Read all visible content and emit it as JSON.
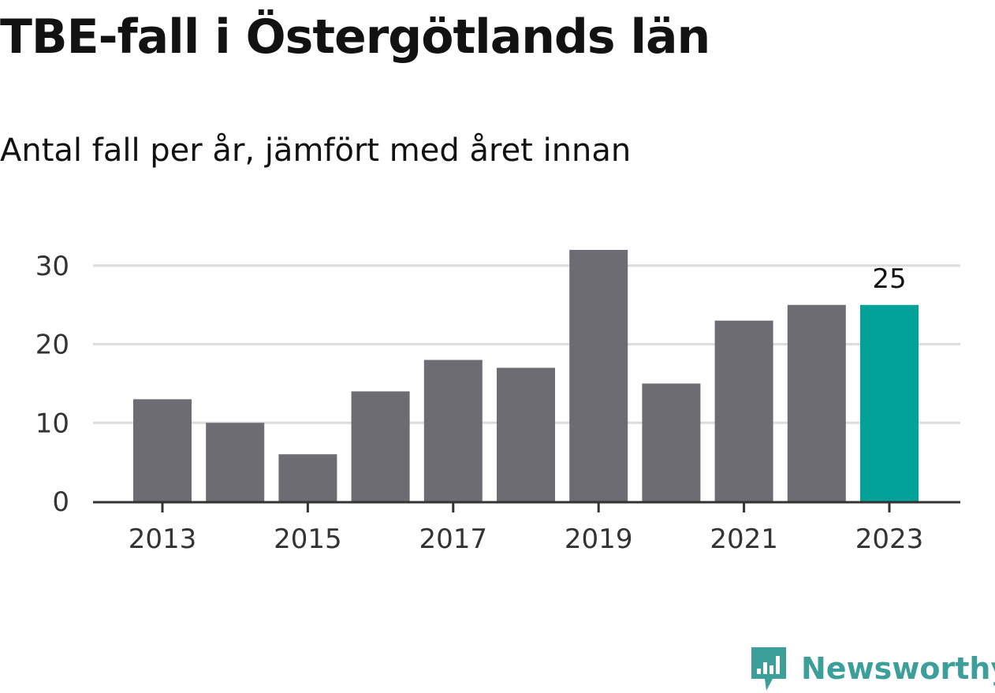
{
  "title": "TBE-fall i Östergötlands län",
  "subtitle": "Antal fall per år, jämfört med året innan",
  "brand": {
    "name": "Newsworthy",
    "icon": "newsworthy-logo-icon",
    "color": "#3d9f99"
  },
  "colors": {
    "bar": "#6d6c72",
    "highlight": "#00a29a",
    "grid": "#dcdcdc",
    "axis": "#333333",
    "text": "#333333"
  },
  "chart_data": {
    "type": "bar",
    "categories": [
      "2013",
      "2014",
      "2015",
      "2016",
      "2017",
      "2018",
      "2019",
      "2020",
      "2021",
      "2022",
      "2023"
    ],
    "values": [
      13,
      10,
      6,
      14,
      18,
      17,
      32,
      15,
      23,
      25,
      25
    ],
    "x_tick_labels": [
      "2013",
      "2015",
      "2017",
      "2019",
      "2021",
      "2023"
    ],
    "y_ticks": [
      0,
      10,
      20,
      30
    ],
    "ylim": [
      0,
      32
    ],
    "grid": true,
    "highlight_index": 10,
    "data_labels": [
      {
        "index": 10,
        "text": "25"
      }
    ],
    "xlabel": "",
    "ylabel": ""
  }
}
